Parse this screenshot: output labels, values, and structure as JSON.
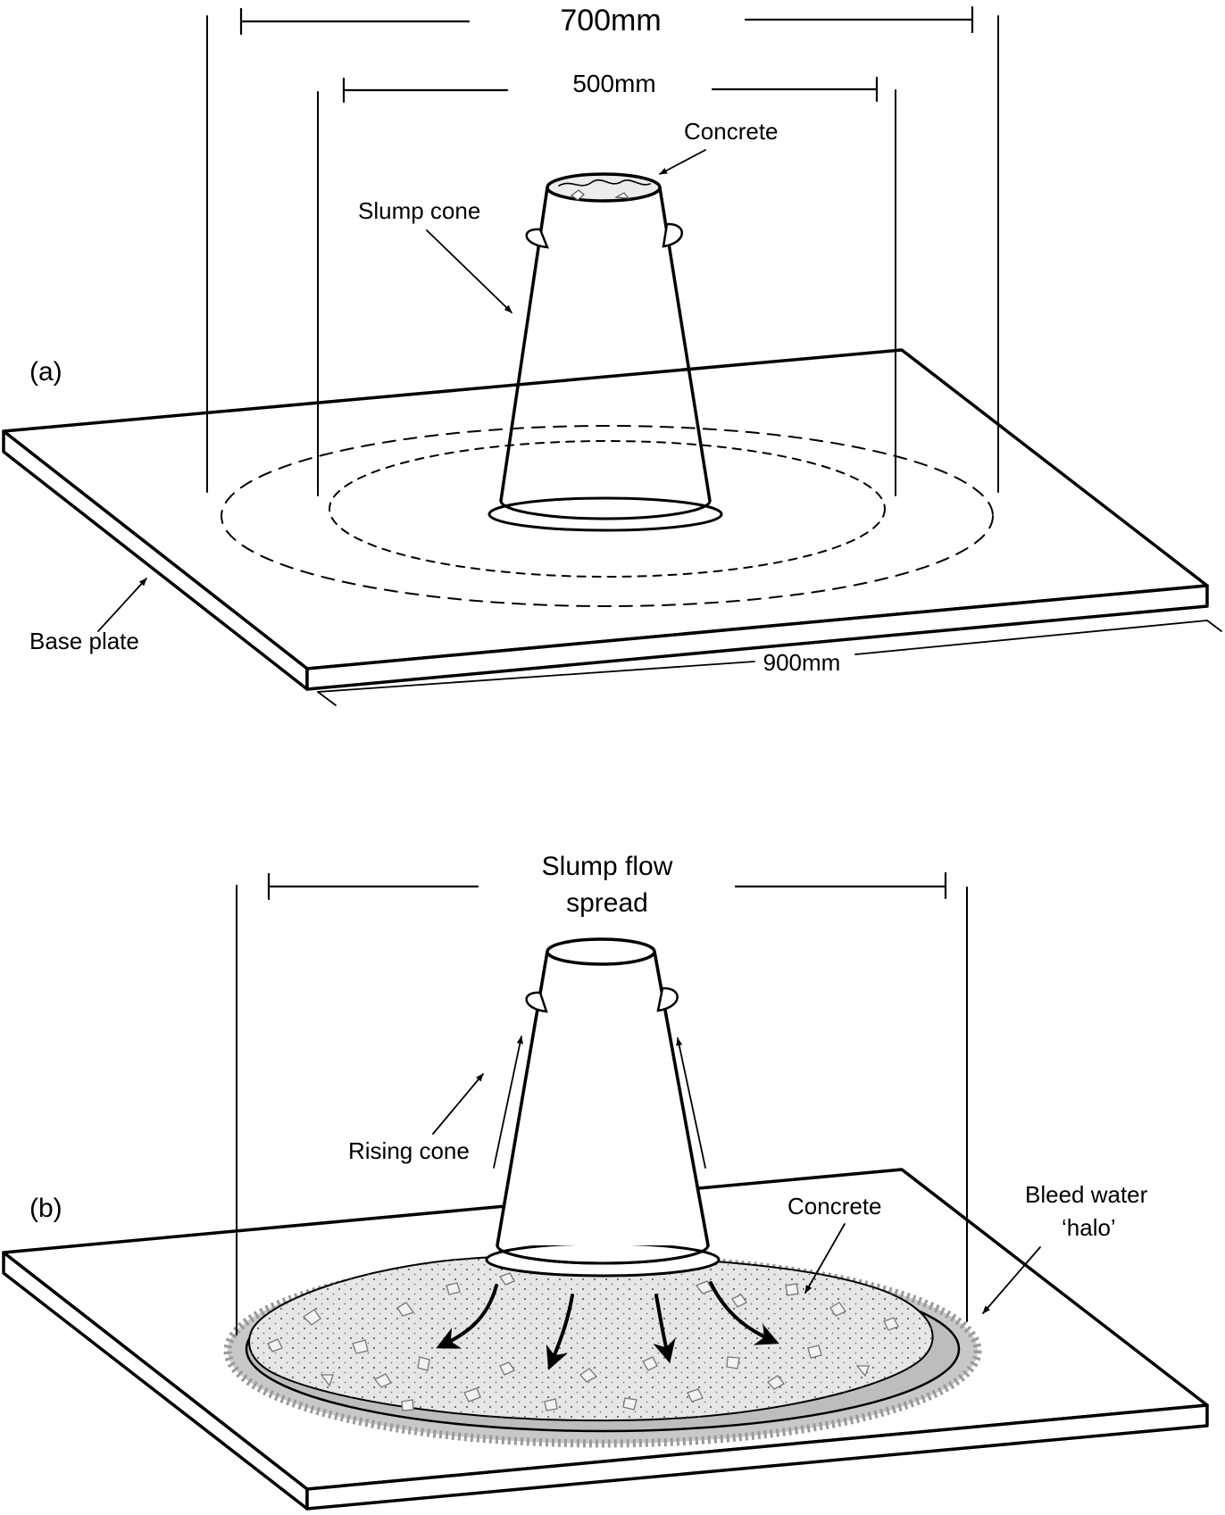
{
  "panel_a": {
    "tag": "(a)",
    "dim_700": "700mm",
    "dim_500": "500mm",
    "concrete": "Concrete",
    "slump_cone": "Slump cone",
    "base_plate": "Base plate",
    "dim_900": "900mm"
  },
  "panel_b": {
    "tag": "(b)",
    "spread_line1": "Slump flow",
    "spread_line2": "spread",
    "rising_cone": "Rising cone",
    "concrete": "Concrete",
    "halo_line1": "Bleed water",
    "halo_line2": "‘halo’"
  },
  "colors": {
    "line": "#000000",
    "concrete_fill": "#e6e6e6",
    "halo_fill": "#c8c8c8",
    "halo_edge": "#9a9a9a",
    "aggregate": "#777777",
    "background": "#ffffff"
  }
}
